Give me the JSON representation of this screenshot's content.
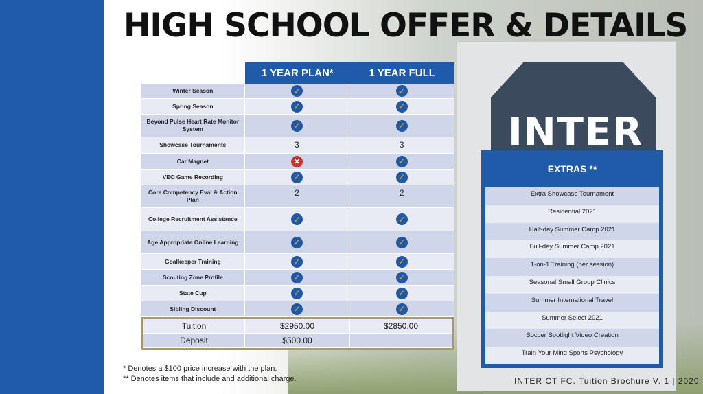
{
  "title": "HIGH SCHOOL OFFER & DETAILS",
  "colors": {
    "brand_blue": "#1f5ba8",
    "check_gold": "#b49a52",
    "cross_red": "#c8332e",
    "highlight_border": "#a8996a"
  },
  "logo_text": "INTER",
  "table": {
    "columns": [
      "1 YEAR PLAN*",
      "1 YEAR FULL"
    ],
    "rows": [
      {
        "label": "Winter Season",
        "plan": "check",
        "full": "check"
      },
      {
        "label": "Spring Season",
        "plan": "check",
        "full": "check"
      },
      {
        "label": "Beyond Pulse Heart Rate Monitor System",
        "plan": "check",
        "full": "check"
      },
      {
        "label": "Showcase Tournaments",
        "plan": "3",
        "full": "3"
      },
      {
        "label": "Car Magnet",
        "plan": "cross",
        "full": "check"
      },
      {
        "label": "VEO Game Recording",
        "plan": "check",
        "full": "check"
      },
      {
        "label": "Core Competency Eval & Action Plan",
        "plan": "2",
        "full": "2"
      },
      {
        "label": "College Recruitment Assistance",
        "plan": "check",
        "full": "check"
      },
      {
        "label": "Age Appropriate Online Learning",
        "plan": "check",
        "full": "check"
      },
      {
        "label": "Goalkeeper Training",
        "plan": "check",
        "full": "check"
      },
      {
        "label": "Scouting Zone Profile",
        "plan": "check",
        "full": "check"
      },
      {
        "label": "State Cup",
        "plan": "check",
        "full": "check"
      },
      {
        "label": "Sibling Discount",
        "plan": "check",
        "full": "check"
      }
    ],
    "pricing": [
      {
        "label": "Tuition",
        "plan": "$2950.00",
        "full": "$2850.00"
      },
      {
        "label": "Deposit",
        "plan": "$500.00",
        "full": ""
      }
    ]
  },
  "notes": [
    "* Denotes a $100 price increase with the plan.",
    "** Denotes items that include and additional charge."
  ],
  "extras": {
    "title": "EXTRAS **",
    "items": [
      "Extra Showcase Tournament",
      "Residential 2021",
      "Half-day Summer Camp 2021",
      "Full-day Summer Camp 2021",
      "1-on-1 Training (per session)",
      "Seasonal Small Group Clinics",
      "Summer International Travel",
      "Summer Select 2021",
      "Soccer Spotlight Video Creation",
      "Train Your Mind Sports Psychology"
    ]
  },
  "footer": "INTER CT FC. Tuition Brochure V. 1 | 2020"
}
